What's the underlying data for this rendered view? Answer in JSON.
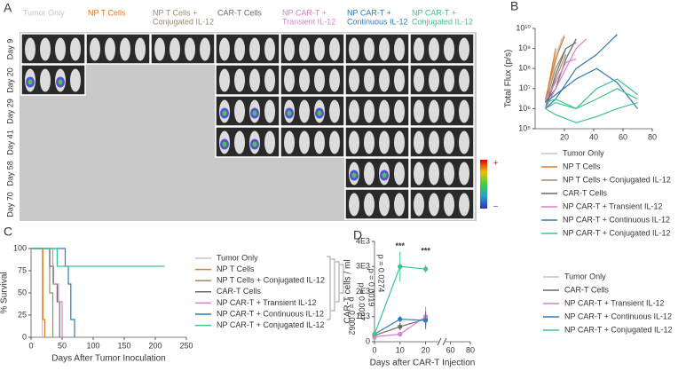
{
  "panel_a": {
    "panel": "A",
    "columns": [
      {
        "lines": [
          "Tumor Only"
        ],
        "color": "#c4c4c4"
      },
      {
        "lines": [
          "NP T Cells"
        ],
        "color": "#e07b27"
      },
      {
        "lines": [
          "NP T Cells +",
          "Conjugated IL-12"
        ],
        "color": "#a08a6a"
      },
      {
        "lines": [
          "CAR-T Cells"
        ],
        "color": "#6a6a6a"
      },
      {
        "lines": [
          "NP CAR-T +",
          "Transient IL-12"
        ],
        "color": "#d77fd0"
      },
      {
        "lines": [
          "NP CAR-T +",
          "Continuous IL-12"
        ],
        "color": "#2f7ab8"
      },
      {
        "lines": [
          "NP CAR-T +",
          "Conjugated IL-12"
        ],
        "color": "#3bc48b"
      }
    ],
    "rows": [
      "Day 9",
      "Day 20",
      "Day 29",
      "Day 41",
      "Day 58",
      "Day 70"
    ],
    "colorbar": {
      "max_label": "+",
      "min_label": "–"
    }
  },
  "chart_data": [
    {
      "type": "line",
      "panel": "B",
      "ylabel": "Total Flux (p/s)",
      "log_y": true,
      "xlim": [
        0,
        80
      ],
      "xticks": [
        20,
        40,
        60,
        80
      ],
      "ylim": [
        100000,
        10000000000
      ],
      "yticks": [
        {
          "value": 100000,
          "label": "10⁵"
        },
        {
          "value": 1000000,
          "label": "10⁶"
        },
        {
          "value": 10000000,
          "label": "10⁷"
        },
        {
          "value": 100000000,
          "label": "10⁸"
        },
        {
          "value": 1000000000,
          "label": "10⁹"
        },
        {
          "value": 10000000000,
          "label": "10¹⁰"
        }
      ],
      "series": [
        {
          "name": "Tumor Only",
          "color": "#c4c4c4",
          "mice": [
            {
              "x": [
                7,
                14,
                20
              ],
              "values": [
                2000000,
                500000000,
                5000000000
              ]
            },
            {
              "x": [
                7,
                14,
                18
              ],
              "values": [
                1000000,
                200000000,
                3000000000
              ]
            }
          ]
        },
        {
          "name": "NP T Cells",
          "color": "#e07b27",
          "mice": [
            {
              "x": [
                7,
                14,
                20
              ],
              "values": [
                3000000,
                300000000,
                4000000000
              ]
            },
            {
              "x": [
                7,
                14
              ],
              "values": [
                2000000,
                1000000000
              ]
            }
          ]
        },
        {
          "name": "NP T Cells + Conjugated IL-12",
          "color": "#a08a6a",
          "mice": [
            {
              "x": [
                7,
                14,
                21
              ],
              "values": [
                2000000,
                100000000,
                1000000000
              ]
            },
            {
              "x": [
                7,
                14,
                21
              ],
              "values": [
                1000000,
                30000000,
                500000000
              ]
            }
          ]
        },
        {
          "name": "CAR-T Cells",
          "color": "#6a6a6a",
          "mice": [
            {
              "x": [
                7,
                14,
                21,
                28
              ],
              "values": [
                2000000,
                10000000,
                300000000,
                3000000000
              ]
            },
            {
              "x": [
                7,
                14,
                21,
                28
              ],
              "values": [
                1000000,
                50000000,
                1000000000,
                2000000000
              ]
            }
          ]
        },
        {
          "name": "NP CAR-T + Transient IL-12",
          "color": "#d77fd0",
          "mice": [
            {
              "x": [
                7,
                14,
                21,
                28,
                35
              ],
              "values": [
                1000000,
                10000000,
                100000000,
                1000000000,
                3000000000
              ]
            },
            {
              "x": [
                7,
                14,
                21,
                28
              ],
              "values": [
                3000000,
                20000000,
                200000000,
                300000000
              ]
            }
          ]
        },
        {
          "name": "NP CAR-T + Continuous IL-12",
          "color": "#2f7ab8",
          "mice": [
            {
              "x": [
                7,
                14,
                28,
                42,
                56
              ],
              "values": [
                1000000,
                3000000,
                100000000,
                500000000,
                5000000000
              ]
            },
            {
              "x": [
                7,
                14,
                28,
                42,
                56,
                70
              ],
              "values": [
                2000000,
                5000000,
                30000000,
                100000000,
                20000000,
                1000000
              ]
            }
          ]
        },
        {
          "name": "NP CAR-T + Conjugated IL-12",
          "color": "#3bc48b",
          "mice": [
            {
              "x": [
                7,
                14,
                28,
                42,
                56,
                70
              ],
              "values": [
                1000000,
                2000000,
                1000000,
                10000000,
                30000000,
                5000000
              ]
            },
            {
              "x": [
                7,
                14,
                28,
                42,
                56,
                70
              ],
              "values": [
                2000000,
                3000000,
                1000000,
                3000000,
                10000000,
                3000000
              ]
            },
            {
              "x": [
                7,
                14,
                28,
                42,
                56,
                70
              ],
              "values": [
                1000000,
                500000,
                200000,
                400000,
                1000000,
                2000000
              ]
            }
          ]
        }
      ]
    },
    {
      "type": "line",
      "panel": "C",
      "ylabel": "% Survival",
      "xlabel": "Days After Tumor Inoculation",
      "xlim": [
        0,
        250
      ],
      "xticks": [
        0,
        50,
        100,
        150,
        200,
        250
      ],
      "ylim": [
        0,
        100
      ],
      "yticks": [
        0,
        25,
        50,
        75,
        100
      ],
      "p_values": [
        "p = 0.0274",
        "p = 0.0019",
        "p = 0.0027",
        "p = 0.0062"
      ],
      "series": [
        {
          "name": "Tumor Only",
          "color": "#c4c4c4",
          "x": [
            0,
            18,
            18
          ],
          "values": [
            100,
            100,
            0
          ]
        },
        {
          "name": "NP T Cells",
          "color": "#e07b27",
          "x": [
            0,
            19,
            19,
            22,
            22
          ],
          "values": [
            100,
            100,
            20,
            20,
            0
          ]
        },
        {
          "name": "NP T Cells + Conjugated IL-12",
          "color": "#a08a6a",
          "x": [
            0,
            30,
            30,
            35,
            35
          ],
          "values": [
            100,
            100,
            50,
            50,
            0
          ]
        },
        {
          "name": "CAR-T Cells",
          "color": "#6a6a6a",
          "x": [
            0,
            30,
            30,
            36,
            36,
            42,
            42,
            46,
            46
          ],
          "values": [
            100,
            100,
            80,
            80,
            60,
            60,
            40,
            40,
            0
          ]
        },
        {
          "name": "NP CAR-T + Transient IL-12",
          "color": "#d77fd0",
          "x": [
            0,
            35,
            35,
            44,
            44,
            50,
            50
          ],
          "values": [
            100,
            100,
            60,
            60,
            40,
            40,
            0
          ]
        },
        {
          "name": "NP CAR-T + Continuous IL-12",
          "color": "#2f7ab8",
          "x": [
            0,
            55,
            55,
            60,
            60,
            64,
            64,
            70,
            70
          ],
          "values": [
            100,
            100,
            80,
            80,
            60,
            60,
            20,
            20,
            0
          ]
        },
        {
          "name": "NP CAR-T + Conjugated IL-12",
          "color": "#3bc48b",
          "x": [
            0,
            42,
            42,
            215
          ],
          "values": [
            100,
            100,
            80,
            80
          ]
        }
      ]
    },
    {
      "type": "line",
      "panel": "D",
      "ylabel": "CAR-T cells / ml",
      "xlabel": "Days after CAR-T Injection",
      "xlim": [
        0,
        80
      ],
      "xbreak": [
        25,
        55
      ],
      "xticks": [
        0,
        10,
        20,
        60,
        80
      ],
      "ylim": [
        0,
        4000
      ],
      "yticks": [
        0,
        {
          "value": 1000,
          "label": "1E3"
        },
        {
          "value": 2000,
          "label": "2E3"
        },
        {
          "value": 3000,
          "label": "3E3"
        },
        {
          "value": 4000,
          "label": "4E3"
        }
      ],
      "annotations": [
        {
          "text": "***",
          "x": 10,
          "y": 3800
        },
        {
          "text": "***",
          "x": 20,
          "y": 3600
        }
      ],
      "series": [
        {
          "name": "Tumor Only",
          "color": "#c4c4c4",
          "x": [
            0
          ],
          "values": [
            150
          ],
          "errors": [
            50
          ]
        },
        {
          "name": "CAR-T Cells",
          "color": "#6a6a6a",
          "x": [
            0,
            10,
            20
          ],
          "values": [
            250,
            600,
            900
          ],
          "errors": [
            80,
            150,
            300
          ]
        },
        {
          "name": "NP CAR-T + Transient IL-12",
          "color": "#d77fd0",
          "x": [
            0,
            10,
            20
          ],
          "values": [
            200,
            300,
            1000
          ],
          "errors": [
            60,
            100,
            400
          ]
        },
        {
          "name": "NP CAR-T + Continuous IL-12",
          "color": "#2f7ab8",
          "x": [
            0,
            10,
            20
          ],
          "values": [
            300,
            900,
            850
          ],
          "errors": [
            80,
            120,
            350
          ]
        },
        {
          "name": "NP CAR-T + Conjugated IL-12",
          "color": "#3bc48b",
          "x": [
            0,
            10,
            20
          ],
          "values": [
            300,
            3000,
            2900
          ],
          "errors": [
            80,
            600,
            150
          ]
        }
      ]
    }
  ]
}
